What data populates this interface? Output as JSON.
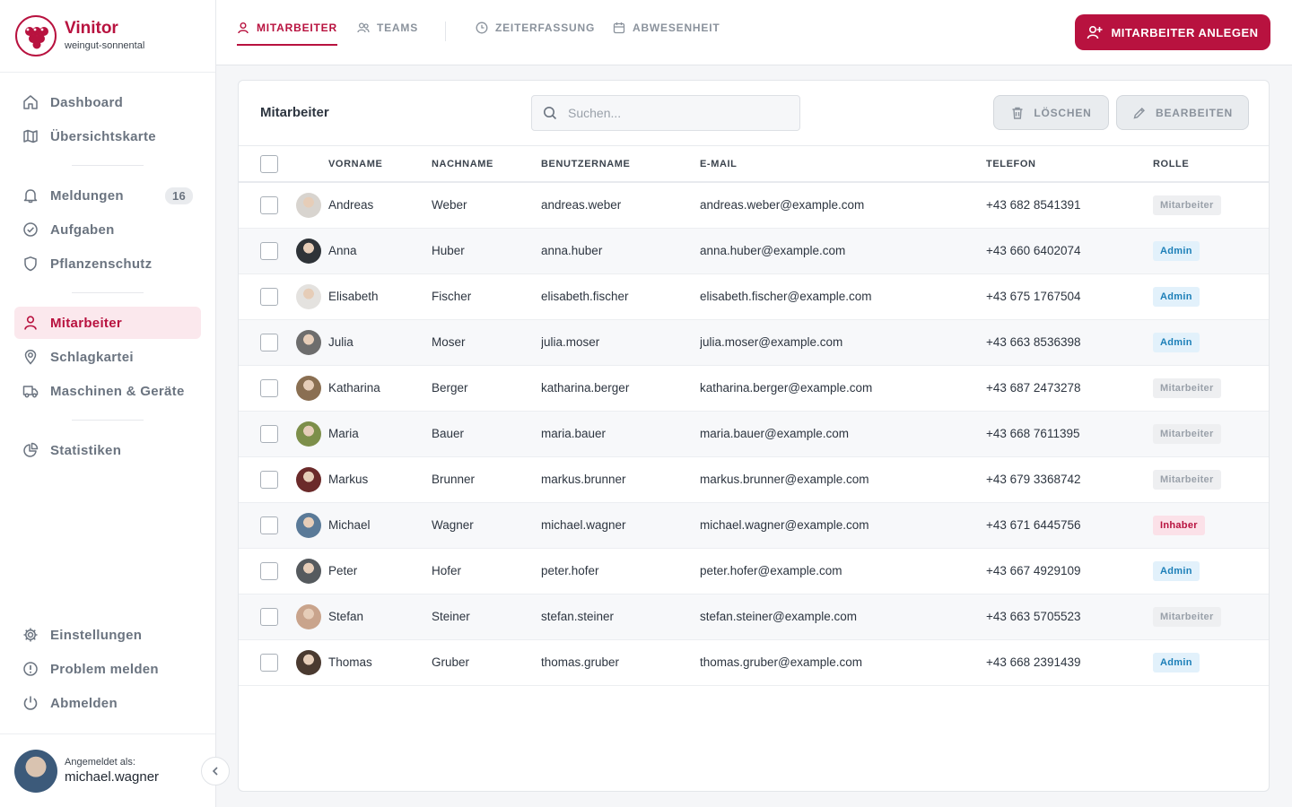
{
  "brand": {
    "name": "Vinitor",
    "subtitle": "weingut-sonnental",
    "accent": "#b8123f"
  },
  "sidebar": {
    "groups": [
      [
        {
          "label": "Dashboard",
          "icon": "home-icon"
        },
        {
          "label": "Übersichtskarte",
          "icon": "map-icon"
        }
      ],
      [
        {
          "label": "Meldungen",
          "icon": "bell-icon",
          "badge": "16"
        },
        {
          "label": "Aufgaben",
          "icon": "check-circle-icon"
        },
        {
          "label": "Pflanzenschutz",
          "icon": "shield-icon"
        }
      ],
      [
        {
          "label": "Mitarbeiter",
          "icon": "user-icon",
          "active": true
        },
        {
          "label": "Schlagkartei",
          "icon": "map-pin-icon"
        },
        {
          "label": "Maschinen & Geräte",
          "icon": "truck-icon"
        }
      ],
      [
        {
          "label": "Statistiken",
          "icon": "pie-chart-icon"
        }
      ]
    ],
    "bottom": [
      {
        "label": "Einstellungen",
        "icon": "gear-icon"
      },
      {
        "label": "Problem melden",
        "icon": "alert-circle-icon"
      },
      {
        "label": "Abmelden",
        "icon": "power-icon"
      }
    ],
    "user": {
      "label": "Angemeldet als:",
      "username": "michael.wagner"
    }
  },
  "tabs": [
    {
      "label": "MITARBEITER",
      "icon": "user-icon",
      "active": true
    },
    {
      "label": "TEAMS",
      "icon": "users-icon"
    },
    {
      "label": "ZEITERFASSUNG",
      "icon": "clock-icon"
    },
    {
      "label": "ABWESENHEIT",
      "icon": "calendar-icon"
    }
  ],
  "actions": {
    "create": "MITARBEITER ANLEGEN",
    "delete": "LÖSCHEN",
    "edit": "BEARBEITEN"
  },
  "card": {
    "title": "Mitarbeiter",
    "search_placeholder": "Suchen...",
    "search_value": ""
  },
  "table": {
    "columns": [
      "VORNAME",
      "NACHNAME",
      "BENUTZERNAME",
      "E-MAIL",
      "TELEFON",
      "ROLLE"
    ],
    "rows": [
      {
        "first": "Andreas",
        "last": "Weber",
        "user": "andreas.weber",
        "email": "andreas.weber@example.com",
        "phone": "+43 682 8541391",
        "role": "Mitarbeiter",
        "role_type": "mit",
        "avatar": "#d8d4cf"
      },
      {
        "first": "Anna",
        "last": "Huber",
        "user": "anna.huber",
        "email": "anna.huber@example.com",
        "phone": "+43 660 6402074",
        "role": "Admin",
        "role_type": "adm",
        "avatar": "#2e3338"
      },
      {
        "first": "Elisabeth",
        "last": "Fischer",
        "user": "elisabeth.fischer",
        "email": "elisabeth.fischer@example.com",
        "phone": "+43 675 1767504",
        "role": "Admin",
        "role_type": "adm",
        "avatar": "#e4e2df"
      },
      {
        "first": "Julia",
        "last": "Moser",
        "user": "julia.moser",
        "email": "julia.moser@example.com",
        "phone": "+43 663 8536398",
        "role": "Admin",
        "role_type": "adm",
        "avatar": "#6d6d6d"
      },
      {
        "first": "Katharina",
        "last": "Berger",
        "user": "katharina.berger",
        "email": "katharina.berger@example.com",
        "phone": "+43 687 2473278",
        "role": "Mitarbeiter",
        "role_type": "mit",
        "avatar": "#8a6f52"
      },
      {
        "first": "Maria",
        "last": "Bauer",
        "user": "maria.bauer",
        "email": "maria.bauer@example.com",
        "phone": "+43 668 7611395",
        "role": "Mitarbeiter",
        "role_type": "mit",
        "avatar": "#7d8f4a"
      },
      {
        "first": "Markus",
        "last": "Brunner",
        "user": "markus.brunner",
        "email": "markus.brunner@example.com",
        "phone": "+43 679 3368742",
        "role": "Mitarbeiter",
        "role_type": "mit",
        "avatar": "#6b2a2a"
      },
      {
        "first": "Michael",
        "last": "Wagner",
        "user": "michael.wagner",
        "email": "michael.wagner@example.com",
        "phone": "+43 671 6445756",
        "role": "Inhaber",
        "role_type": "inh",
        "avatar": "#5a7a98"
      },
      {
        "first": "Peter",
        "last": "Hofer",
        "user": "peter.hofer",
        "email": "peter.hofer@example.com",
        "phone": "+43 667 4929109",
        "role": "Admin",
        "role_type": "adm",
        "avatar": "#555a5e"
      },
      {
        "first": "Stefan",
        "last": "Steiner",
        "user": "stefan.steiner",
        "email": "stefan.steiner@example.com",
        "phone": "+43 663 5705523",
        "role": "Mitarbeiter",
        "role_type": "mit",
        "avatar": "#c9a48c"
      },
      {
        "first": "Thomas",
        "last": "Gruber",
        "user": "thomas.gruber",
        "email": "thomas.gruber@example.com",
        "phone": "+43 668 2391439",
        "role": "Admin",
        "role_type": "adm",
        "avatar": "#4a3a30"
      }
    ]
  }
}
